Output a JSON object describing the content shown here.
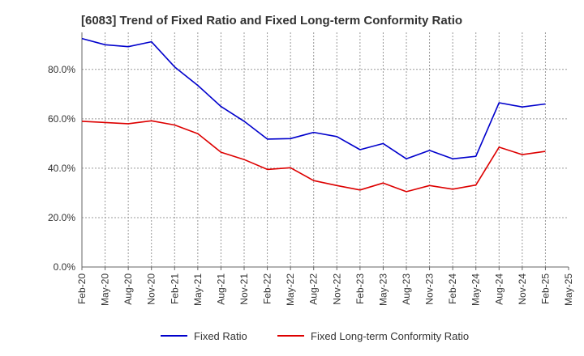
{
  "chart_data": {
    "type": "line",
    "title": "[6083]  Trend of Fixed Ratio and Fixed Long-term Conformity Ratio",
    "xlabel": "",
    "ylabel": "",
    "categories": [
      "Feb-20",
      "May-20",
      "Aug-20",
      "Nov-20",
      "Feb-21",
      "May-21",
      "Aug-21",
      "Nov-21",
      "Feb-22",
      "May-22",
      "Aug-22",
      "Nov-22",
      "Feb-23",
      "May-23",
      "Aug-23",
      "Nov-23",
      "Feb-24",
      "May-24",
      "Aug-24",
      "Nov-24",
      "Feb-25",
      "May-25"
    ],
    "ylim": [
      0,
      95
    ],
    "yticks": [
      0,
      20,
      40,
      60,
      80
    ],
    "ytick_labels": [
      "0.0%",
      "20.0%",
      "40.0%",
      "60.0%",
      "80.0%"
    ],
    "grid": true,
    "legend_position": "bottom",
    "series": [
      {
        "name": "Fixed Ratio",
        "color": "#0000cc",
        "values": [
          92.5,
          90.0,
          89.2,
          91.2,
          81.0,
          73.5,
          65.0,
          59.0,
          51.8,
          52.0,
          54.5,
          52.8,
          47.5,
          50.0,
          43.8,
          47.2,
          43.8,
          44.8,
          66.5,
          64.8,
          66.0,
          null
        ]
      },
      {
        "name": "Fixed Long-term Conformity Ratio",
        "color": "#dd0000",
        "values": [
          59.0,
          58.5,
          58.0,
          59.2,
          57.5,
          54.0,
          46.5,
          43.5,
          39.5,
          40.2,
          35.0,
          33.0,
          31.2,
          34.0,
          30.5,
          33.0,
          31.5,
          33.2,
          48.5,
          45.5,
          46.8,
          null
        ]
      }
    ]
  }
}
